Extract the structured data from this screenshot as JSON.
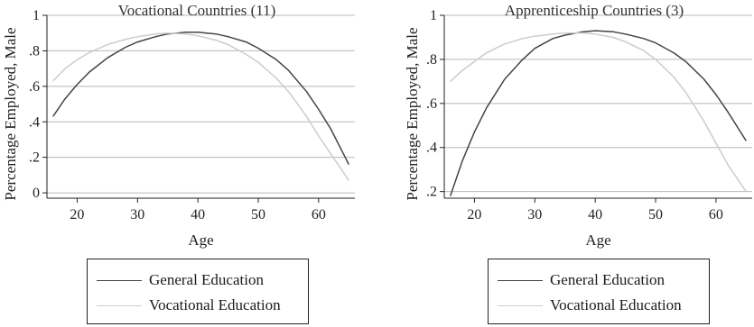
{
  "chart_data": [
    {
      "type": "line",
      "title": "Vocational Countries (11)",
      "xlabel": "Age",
      "ylabel": "Percentage Employed, Male",
      "xlim": [
        15,
        66
      ],
      "ylim": [
        -0.03,
        1.0
      ],
      "xticks": [
        20,
        30,
        40,
        50,
        60
      ],
      "yticks": [
        0,
        0.2,
        0.4,
        0.6,
        0.8,
        1
      ],
      "ytick_labels": [
        "0",
        ".2",
        ".4",
        ".6",
        ".8",
        "1"
      ],
      "xtick_labels": [
        "20",
        "30",
        "40",
        "50",
        "60"
      ],
      "grid": true,
      "legend_position": "bottom",
      "series": [
        {
          "name": "General Education",
          "color": "#444444",
          "x": [
            16,
            18,
            20,
            22,
            25,
            28,
            30,
            33,
            35,
            38,
            40,
            43,
            45,
            48,
            50,
            53,
            55,
            58,
            60,
            62,
            65
          ],
          "y": [
            0.43,
            0.53,
            0.61,
            0.68,
            0.76,
            0.82,
            0.85,
            0.88,
            0.895,
            0.905,
            0.905,
            0.895,
            0.88,
            0.85,
            0.815,
            0.75,
            0.69,
            0.57,
            0.47,
            0.36,
            0.16
          ]
        },
        {
          "name": "Vocational Education",
          "color": "#cccccc",
          "x": [
            16,
            18,
            20,
            22,
            25,
            28,
            30,
            33,
            35,
            38,
            40,
            43,
            45,
            48,
            50,
            53,
            55,
            58,
            60,
            62,
            65
          ],
          "y": [
            0.63,
            0.7,
            0.75,
            0.79,
            0.835,
            0.865,
            0.88,
            0.895,
            0.9,
            0.895,
            0.885,
            0.86,
            0.835,
            0.78,
            0.735,
            0.645,
            0.57,
            0.43,
            0.32,
            0.22,
            0.07
          ]
        }
      ]
    },
    {
      "type": "line",
      "title": "Apprenticeship Countries (3)",
      "xlabel": "Age",
      "ylabel": "Percentage Employed, Male",
      "xlim": [
        15,
        66
      ],
      "ylim": [
        0.17,
        1.0
      ],
      "xticks": [
        20,
        30,
        40,
        50,
        60
      ],
      "yticks": [
        0.2,
        0.4,
        0.6,
        0.8,
        1
      ],
      "ytick_labels": [
        ".2",
        ".4",
        ".6",
        ".8",
        "1"
      ],
      "xtick_labels": [
        "20",
        "30",
        "40",
        "50",
        "60"
      ],
      "grid": true,
      "legend_position": "bottom",
      "series": [
        {
          "name": "General Education",
          "color": "#444444",
          "x": [
            16,
            18,
            20,
            22,
            25,
            28,
            30,
            33,
            35,
            38,
            40,
            43,
            45,
            48,
            50,
            53,
            55,
            58,
            60,
            62,
            65
          ],
          "y": [
            0.18,
            0.34,
            0.47,
            0.58,
            0.71,
            0.8,
            0.85,
            0.895,
            0.91,
            0.925,
            0.93,
            0.925,
            0.915,
            0.895,
            0.875,
            0.83,
            0.79,
            0.71,
            0.64,
            0.56,
            0.43
          ]
        },
        {
          "name": "Vocational Education",
          "color": "#cccccc",
          "x": [
            16,
            18,
            20,
            22,
            25,
            28,
            30,
            33,
            35,
            38,
            40,
            43,
            45,
            48,
            50,
            53,
            55,
            58,
            60,
            62,
            65
          ],
          "y": [
            0.7,
            0.75,
            0.79,
            0.83,
            0.87,
            0.895,
            0.905,
            0.915,
            0.92,
            0.92,
            0.915,
            0.9,
            0.88,
            0.84,
            0.8,
            0.72,
            0.65,
            0.52,
            0.42,
            0.32,
            0.2
          ]
        }
      ]
    }
  ]
}
